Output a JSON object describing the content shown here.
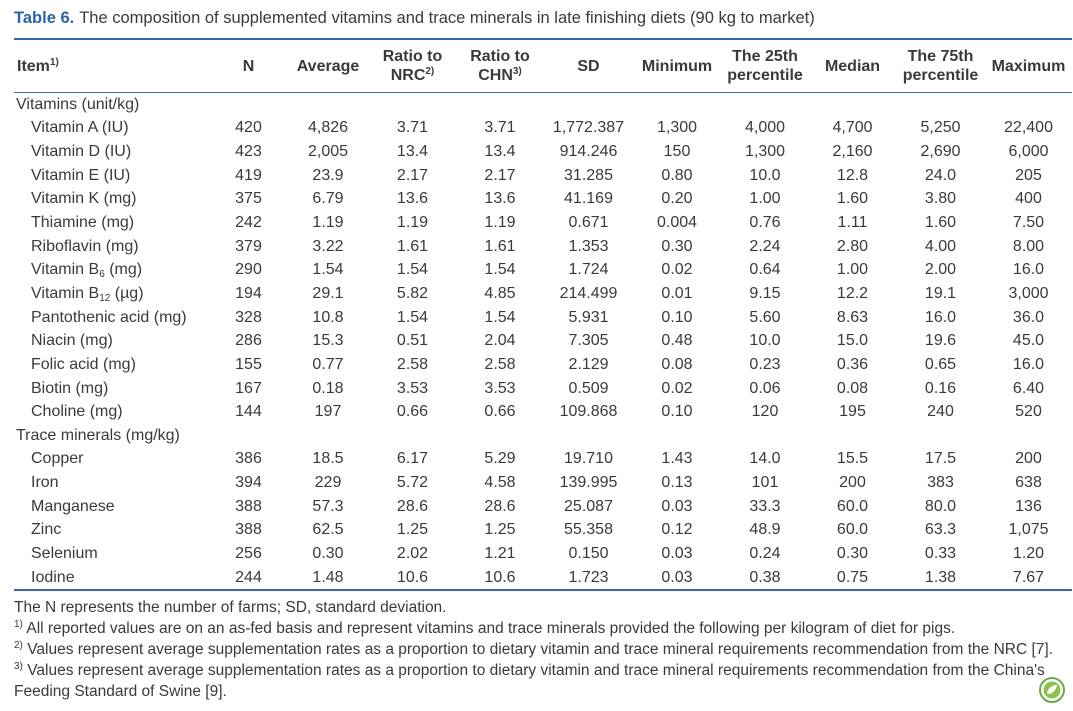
{
  "title": {
    "label": "Table 6.",
    "text": "The composition of supplemented vitamins and trace minerals in late finishing diets (90 kg to market)"
  },
  "table": {
    "header": [
      {
        "lines": [
          "Item"
        ],
        "sup": "1)"
      },
      {
        "lines": [
          "N"
        ]
      },
      {
        "lines": [
          "Average"
        ]
      },
      {
        "lines": [
          "Ratio to",
          "NRC"
        ],
        "sup": "2)"
      },
      {
        "lines": [
          "Ratio to",
          "CHN"
        ],
        "sup": "3)"
      },
      {
        "lines": [
          "SD"
        ]
      },
      {
        "lines": [
          "Minimum"
        ]
      },
      {
        "lines": [
          "The 25th",
          "percentile"
        ]
      },
      {
        "lines": [
          "Median"
        ]
      },
      {
        "lines": [
          "The 75th",
          "percentile"
        ]
      },
      {
        "lines": [
          "Maximum"
        ]
      }
    ],
    "sections": [
      {
        "title": "Vitamins (unit/kg)",
        "rows": [
          {
            "item": "Vitamin A (IU)",
            "values": [
              "420",
              "4,826",
              "3.71",
              "3.71",
              "1,772.387",
              "1,300",
              "4,000",
              "4,700",
              "5,250",
              "22,400"
            ]
          },
          {
            "item": "Vitamin D (IU)",
            "values": [
              "423",
              "2,005",
              "13.4",
              "13.4",
              "914.246",
              "150",
              "1,300",
              "2,160",
              "2,690",
              "6,000"
            ]
          },
          {
            "item": "Vitamin E (IU)",
            "values": [
              "419",
              "23.9",
              "2.17",
              "2.17",
              "31.285",
              "0.80",
              "10.0",
              "12.8",
              "24.0",
              "205"
            ]
          },
          {
            "item": "Vitamin K (mg)",
            "values": [
              "375",
              "6.79",
              "13.6",
              "13.6",
              "41.169",
              "0.20",
              "1.00",
              "1.60",
              "3.80",
              "400"
            ]
          },
          {
            "item": "Thiamine (mg)",
            "values": [
              "242",
              "1.19",
              "1.19",
              "1.19",
              "0.671",
              "0.004",
              "0.76",
              "1.11",
              "1.60",
              "7.50"
            ]
          },
          {
            "item": "Riboflavin (mg)",
            "values": [
              "379",
              "3.22",
              "1.61",
              "1.61",
              "1.353",
              "0.30",
              "2.24",
              "2.80",
              "4.00",
              "8.00"
            ]
          },
          {
            "item": {
              "text": "Vitamin B",
              "sub": "6",
              "unit": " (mg)"
            },
            "values": [
              "290",
              "1.54",
              "1.54",
              "1.54",
              "1.724",
              "0.02",
              "0.64",
              "1.00",
              "2.00",
              "16.0"
            ]
          },
          {
            "item": {
              "text": "Vitamin B",
              "sub": "12",
              "unit": " (µg)"
            },
            "values": [
              "194",
              "29.1",
              "5.82",
              "4.85",
              "214.499",
              "0.01",
              "9.15",
              "12.2",
              "19.1",
              "3,000"
            ]
          },
          {
            "item": "Pantothenic acid (mg)",
            "values": [
              "328",
              "10.8",
              "1.54",
              "1.54",
              "5.931",
              "0.10",
              "5.60",
              "8.63",
              "16.0",
              "36.0"
            ]
          },
          {
            "item": "Niacin (mg)",
            "values": [
              "286",
              "15.3",
              "0.51",
              "2.04",
              "7.305",
              "0.48",
              "10.0",
              "15.0",
              "19.6",
              "45.0"
            ]
          },
          {
            "item": "Folic acid (mg)",
            "values": [
              "155",
              "0.77",
              "2.58",
              "2.58",
              "2.129",
              "0.08",
              "0.23",
              "0.36",
              "0.65",
              "16.0"
            ]
          },
          {
            "item": "Biotin (mg)",
            "values": [
              "167",
              "0.18",
              "3.53",
              "3.53",
              "0.509",
              "0.02",
              "0.06",
              "0.08",
              "0.16",
              "6.40"
            ]
          },
          {
            "item": "Choline (mg)",
            "values": [
              "144",
              "197",
              "0.66",
              "0.66",
              "109.868",
              "0.10",
              "120",
              "195",
              "240",
              "520"
            ]
          }
        ]
      },
      {
        "title": "Trace minerals (mg/kg)",
        "rows": [
          {
            "item": "Copper",
            "values": [
              "386",
              "18.5",
              "6.17",
              "5.29",
              "19.710",
              "1.43",
              "14.0",
              "15.5",
              "17.5",
              "200"
            ]
          },
          {
            "item": "Iron",
            "values": [
              "394",
              "229",
              "5.72",
              "4.58",
              "139.995",
              "0.13",
              "101",
              "200",
              "383",
              "638"
            ]
          },
          {
            "item": "Manganese",
            "values": [
              "388",
              "57.3",
              "28.6",
              "28.6",
              "25.087",
              "0.03",
              "33.3",
              "60.0",
              "80.0",
              "136"
            ]
          },
          {
            "item": "Zinc",
            "values": [
              "388",
              "62.5",
              "1.25",
              "1.25",
              "55.358",
              "0.12",
              "48.9",
              "60.0",
              "63.3",
              "1,075"
            ]
          },
          {
            "item": "Selenium",
            "values": [
              "256",
              "0.30",
              "2.02",
              "1.21",
              "0.150",
              "0.03",
              "0.24",
              "0.30",
              "0.33",
              "1.20"
            ]
          },
          {
            "item": "Iodine",
            "values": [
              "244",
              "1.48",
              "10.6",
              "10.6",
              "1.723",
              "0.03",
              "0.38",
              "0.75",
              "1.38",
              "7.67"
            ]
          }
        ]
      }
    ]
  },
  "footnotes": [
    {
      "text": "The N represents the number of farms; SD, standard deviation."
    },
    {
      "mark": "1)",
      "text": "All reported values are on an as-fed basis and represent vitamins and trace minerals provided the following per kilogram of diet for pigs."
    },
    {
      "mark": "2)",
      "text": "Values represent average supplementation rates as a proportion to dietary vitamin and trace mineral requirements recommendation from the NRC [7]."
    },
    {
      "mark": "3)",
      "text": "Values represent average supplementation rates as a proportion to dietary vitamin and trace mineral requirements recommendation from the China's Feeding Standard of Swine [9]."
    }
  ]
}
